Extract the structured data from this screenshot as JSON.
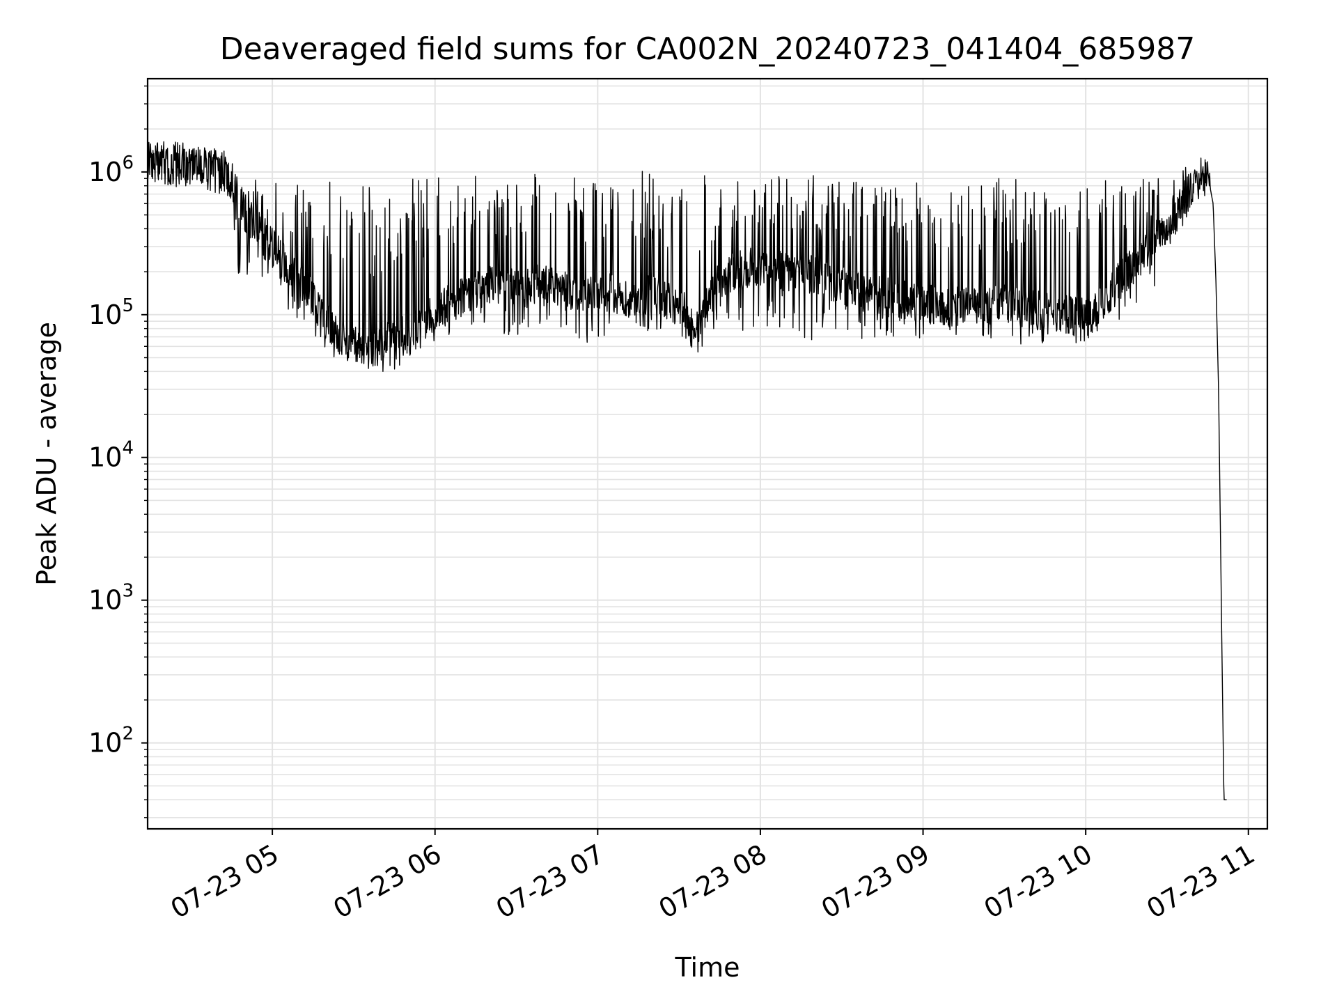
{
  "chart_data": {
    "type": "line",
    "title": "Deaveraged field sums for CA002N_20240723_041404_685987",
    "xlabel": "Time",
    "ylabel": "Peak ADU - average",
    "y_scale": "log",
    "grid": true,
    "x_range": [
      "2024-07-23 04:14",
      "2024-07-23 11:07"
    ],
    "y_range": [
      25,
      4500000
    ],
    "x_ticks": [
      "07-23 05",
      "07-23 06",
      "07-23 07",
      "07-23 08",
      "07-23 09",
      "07-23 10",
      "07-23 11"
    ],
    "y_ticks": [
      {
        "value": 100,
        "base": "10",
        "exp": "2"
      },
      {
        "value": 1000,
        "base": "10",
        "exp": "3"
      },
      {
        "value": 10000,
        "base": "10",
        "exp": "4"
      },
      {
        "value": 100000,
        "base": "10",
        "exp": "5"
      },
      {
        "value": 1000000,
        "base": "10",
        "exp": "6"
      }
    ],
    "line_color": "#000000",
    "series": [
      {
        "x": [
          "2024-07-23 04:14",
          "2024-07-23 04:20",
          "2024-07-23 04:30",
          "2024-07-23 04:40",
          "2024-07-23 04:45",
          "2024-07-23 04:48",
          "2024-07-23 04:52",
          "2024-07-23 05:00",
          "2024-07-23 05:05",
          "2024-07-23 05:10",
          "2024-07-23 05:15",
          "2024-07-23 05:20",
          "2024-07-23 05:25",
          "2024-07-23 05:30",
          "2024-07-23 05:35",
          "2024-07-23 05:40",
          "2024-07-23 05:45",
          "2024-07-23 05:50",
          "2024-07-23 05:55",
          "2024-07-23 06:00",
          "2024-07-23 06:05",
          "2024-07-23 06:10",
          "2024-07-23 06:20",
          "2024-07-23 06:30",
          "2024-07-23 06:40",
          "2024-07-23 06:50",
          "2024-07-23 07:00",
          "2024-07-23 07:10",
          "2024-07-23 07:20",
          "2024-07-23 07:30",
          "2024-07-23 07:37",
          "2024-07-23 07:40",
          "2024-07-23 07:45",
          "2024-07-23 07:50",
          "2024-07-23 08:00",
          "2024-07-23 08:10",
          "2024-07-23 08:20",
          "2024-07-23 08:30",
          "2024-07-23 08:40",
          "2024-07-23 08:50",
          "2024-07-23 09:00",
          "2024-07-23 09:10",
          "2024-07-23 09:20",
          "2024-07-23 09:30",
          "2024-07-23 09:40",
          "2024-07-23 09:50",
          "2024-07-23 10:00",
          "2024-07-23 10:10",
          "2024-07-23 10:20",
          "2024-07-23 10:30",
          "2024-07-23 10:38",
          "2024-07-23 10:42",
          "2024-07-23 10:45",
          "2024-07-23 10:47",
          "2024-07-23 10:48",
          "2024-07-23 10:49",
          "2024-07-23 10:50",
          "2024-07-23 10:51",
          "2024-07-23 10:52"
        ],
        "y": [
          1200000,
          1100000,
          1150000,
          1050000,
          900000,
          600000,
          450000,
          300000,
          220000,
          180000,
          130000,
          90000,
          70000,
          60000,
          55000,
          65000,
          80000,
          70000,
          85000,
          100000,
          120000,
          140000,
          160000,
          150000,
          170000,
          140000,
          150000,
          130000,
          140000,
          120000,
          75000,
          110000,
          180000,
          200000,
          220000,
          200000,
          190000,
          160000,
          140000,
          130000,
          120000,
          115000,
          110000,
          120000,
          110000,
          100000,
          95000,
          150000,
          250000,
          400000,
          700000,
          900000,
          950000,
          600000,
          180000,
          30000,
          1000,
          40,
          40
        ],
        "spike_max": [
          1600000,
          1700000,
          1600000,
          1300000,
          1900000,
          800000,
          850000,
          1000000,
          850000,
          900000,
          880000,
          880000,
          880000,
          880000,
          880000,
          880000,
          880000,
          880000,
          950000,
          950000,
          950000,
          950000,
          950000,
          950000,
          1000000,
          980000,
          1000000,
          1100000,
          1000000,
          950000,
          1000000,
          1000000,
          950000,
          950000,
          1000000,
          950000,
          950000,
          900000,
          880000,
          880000,
          900000,
          950000,
          950000,
          920000,
          900000,
          880000,
          900000,
          900000,
          950000,
          1000000,
          1100000,
          1050000,
          1000000,
          700000,
          200000,
          30000,
          1000,
          40,
          40
        ],
        "spike_min": [
          850000,
          800000,
          750000,
          700000,
          600000,
          150000,
          200000,
          150000,
          110000,
          90000,
          60000,
          50000,
          48000,
          45000,
          42000,
          40000,
          40000,
          45000,
          55000,
          65000,
          70000,
          75000,
          75000,
          70000,
          70000,
          65000,
          60000,
          70000,
          75000,
          70000,
          50000,
          65000,
          70000,
          75000,
          70000,
          70000,
          65000,
          62000,
          68000,
          70000,
          68000,
          70000,
          65000,
          62000,
          62000,
          58000,
          65000,
          80000,
          120000,
          200000,
          500000,
          700000,
          800000,
          500000,
          160000,
          25000,
          800,
          25,
          25
        ]
      }
    ]
  }
}
